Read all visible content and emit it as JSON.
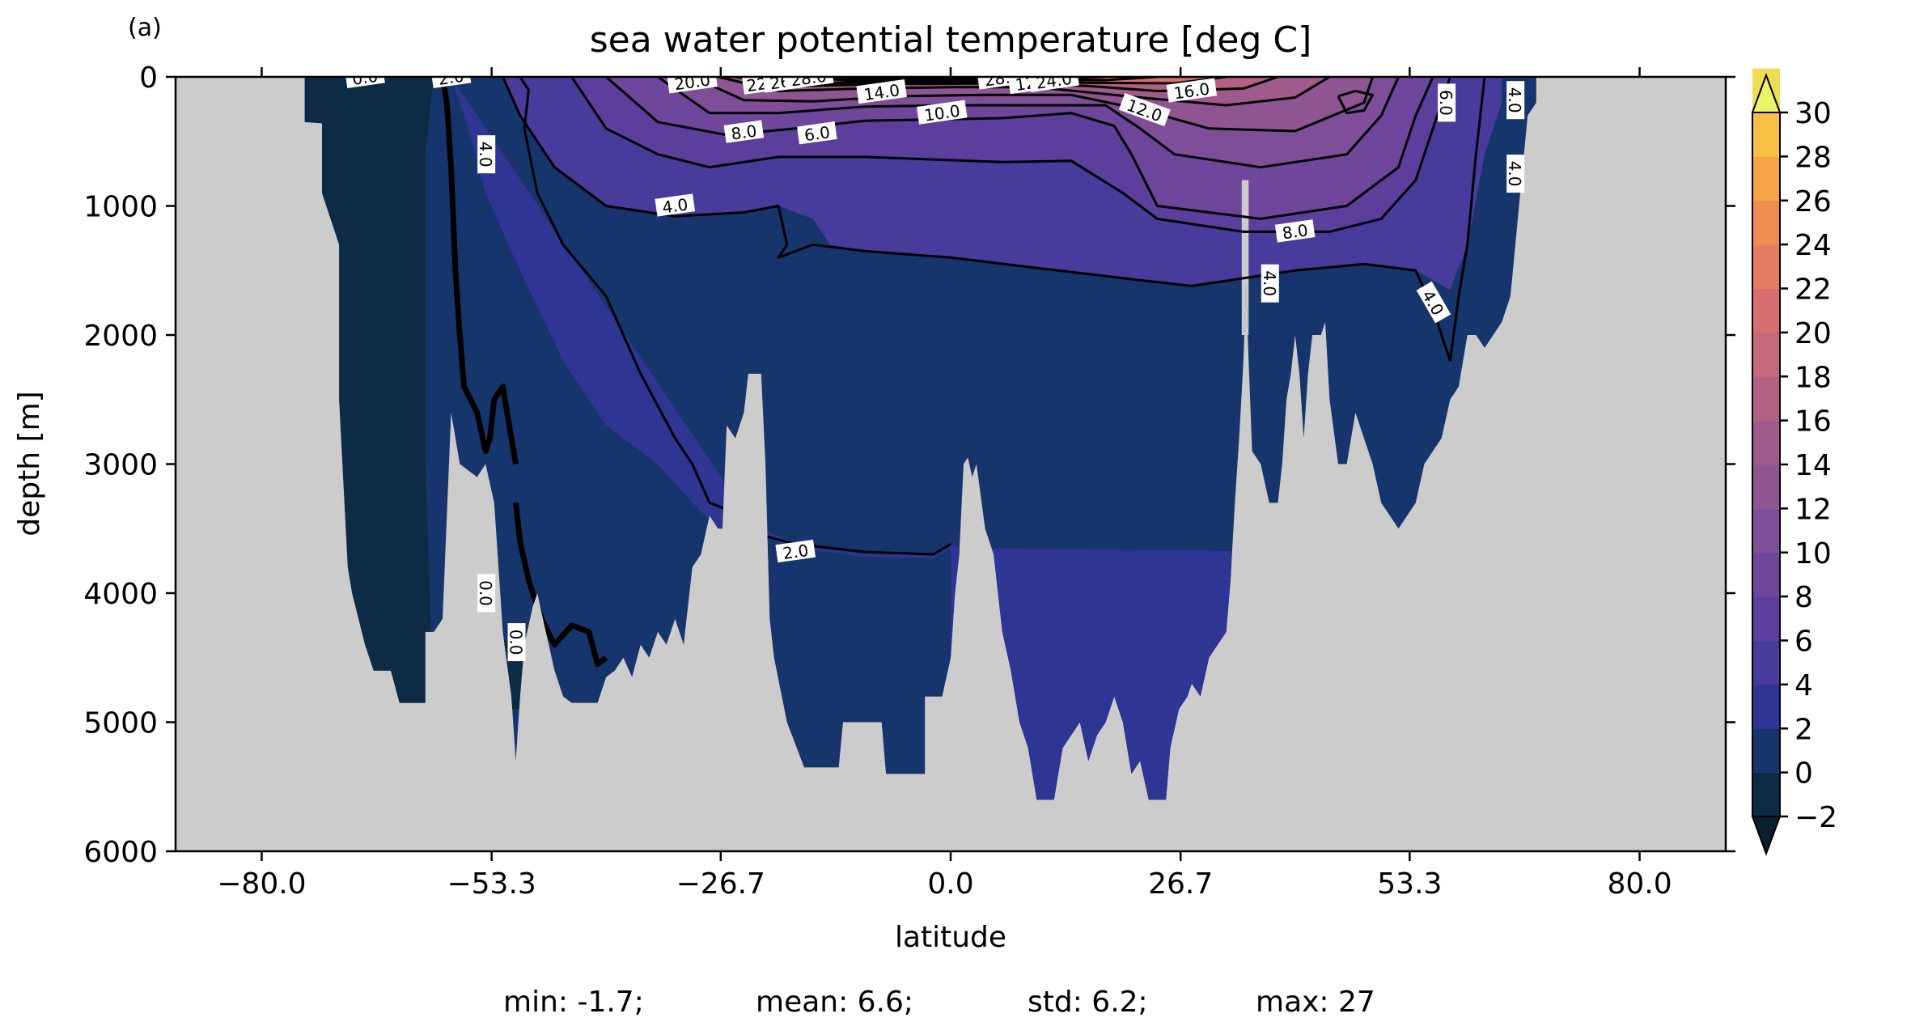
{
  "panel_label": "(a)",
  "chart_data": {
    "type": "heatmap",
    "title": "sea water potential temperature [deg C]",
    "xlabel": "latitude",
    "ylabel": "depth [m]",
    "xlim": [
      -90,
      90
    ],
    "ylim": [
      6000,
      0
    ],
    "x_ticks": [
      -80.0,
      -53.3,
      -26.7,
      0.0,
      26.7,
      53.3,
      80.0
    ],
    "x_tick_labels": [
      "−80.0",
      "−53.3",
      "−26.7",
      "0.0",
      "26.7",
      "53.3",
      "80.0"
    ],
    "y_ticks": [
      0,
      1000,
      2000,
      3000,
      4000,
      5000,
      6000
    ],
    "y_tick_labels": [
      "0",
      "1000",
      "2000",
      "3000",
      "4000",
      "5000",
      "6000"
    ],
    "colorbar": {
      "levels": [
        -2,
        0,
        2,
        4,
        6,
        8,
        10,
        12,
        14,
        16,
        18,
        20,
        22,
        24,
        26,
        28,
        30
      ],
      "tick_labels": [
        "−2",
        "0",
        "2",
        "4",
        "6",
        "8",
        "10",
        "12",
        "14",
        "16",
        "18",
        "20",
        "22",
        "24",
        "26",
        "28",
        "30"
      ],
      "colors": [
        "#0d2b45",
        "#17356d",
        "#2e3592",
        "#473b9b",
        "#5c3f9c",
        "#6e479c",
        "#7f4e98",
        "#8f5592",
        "#a05a8b",
        "#b36183",
        "#c5687b",
        "#d76f70",
        "#e57c62",
        "#ef8d51",
        "#f5a344",
        "#f7c043",
        "#f0dc54"
      ],
      "over_color": "#e8f46a",
      "under_color": "#0a1f2e",
      "extend": "both"
    },
    "land_color": "#cccccc",
    "contour_labels": [
      {
        "text": "0.0",
        "lat": -68,
        "depth": 5
      },
      {
        "text": "2.0",
        "lat": -58,
        "depth": 5
      },
      {
        "text": "4.0",
        "lat": -54,
        "depth": 600
      },
      {
        "text": "20.0",
        "lat": -30,
        "depth": 40
      },
      {
        "text": "22",
        "lat": -22.5,
        "depth": 60
      },
      {
        "text": "26.",
        "lat": -19.5,
        "depth": 40
      },
      {
        "text": "28.0",
        "lat": -16.5,
        "depth": 10
      },
      {
        "text": "14.0",
        "lat": -8,
        "depth": 120
      },
      {
        "text": "8.0",
        "lat": -24,
        "depth": 430
      },
      {
        "text": "6.0",
        "lat": -15.5,
        "depth": 440
      },
      {
        "text": "10.0",
        "lat": -1,
        "depth": 280
      },
      {
        "text": "28.0",
        "lat": 6,
        "depth": 10
      },
      {
        "text": "12.",
        "lat": 9,
        "depth": 50
      },
      {
        "text": "24.0",
        "lat": 12,
        "depth": 30
      },
      {
        "text": "16.0",
        "lat": 28,
        "depth": 110
      },
      {
        "text": "12.0",
        "lat": 22.5,
        "depth": 260
      },
      {
        "text": "4.0",
        "lat": -32,
        "depth": 1000
      },
      {
        "text": "8.0",
        "lat": 40,
        "depth": 1200
      },
      {
        "text": "4.0",
        "lat": 37,
        "depth": 1600
      },
      {
        "text": "4.0",
        "lat": 56,
        "depth": 1750
      },
      {
        "text": "6.0",
        "lat": 57.5,
        "depth": 200
      },
      {
        "text": "4.0",
        "lat": 65.5,
        "depth": 180
      },
      {
        "text": "4.0",
        "lat": 65.5,
        "depth": 750
      },
      {
        "text": "2.0",
        "lat": -18,
        "depth": 3680
      },
      {
        "text": "0.0",
        "lat": -54,
        "depth": 4000
      },
      {
        "text": "0.0",
        "lat": -50.5,
        "depth": 4380
      }
    ]
  },
  "stats": {
    "min": "min: -1.7;",
    "mean": "mean: 6.6;",
    "std": "std: 6.2;",
    "max": "max: 27"
  }
}
